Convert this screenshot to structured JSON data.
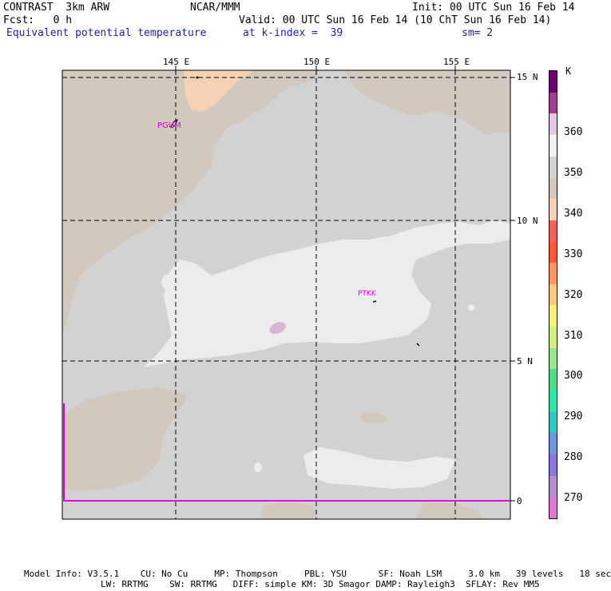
{
  "header": {
    "model": "CONTRAST  3km ARW",
    "org": "NCAR/MMM",
    "init": "Init: 00 UTC Sun 16 Feb 14",
    "fcst": "Fcst:   0 h",
    "valid": "Valid: 00 UTC Sun 16 Feb 14 (10 ChT Sun 16 Feb 14)",
    "field": "Equivalent potential temperature",
    "level": "at k-index =  39",
    "smooth": "sm= 2"
  },
  "map": {
    "lon_labels": [
      "145 E",
      "150 E",
      "155 E"
    ],
    "lat_labels": [
      "15 N",
      "10 N",
      "5 N",
      "0"
    ],
    "stations": [
      "PGUM",
      "PTKK"
    ]
  },
  "legend": {
    "unit": "K",
    "labels": [
      "360",
      "350",
      "340",
      "330",
      "320",
      "310",
      "300",
      "290",
      "280",
      "270"
    ],
    "colors": [
      "#6e006e",
      "#a0408c",
      "#e6c8e6",
      "#f2f2f2",
      "#d2d2d2",
      "#d2c8be",
      "#f5d2b4",
      "#f0645a",
      "#ff5a3c",
      "#ff9664",
      "#ffc882",
      "#f5f07d",
      "#d2f082",
      "#96e68c",
      "#50dc8c",
      "#32e6aa",
      "#32c8c8",
      "#6e96dc",
      "#8c78dc",
      "#b48cd2",
      "#dc78d2"
    ]
  },
  "footer": {
    "line1": "Model Info: V3.5.1    CU: No Cu     MP: Thompson     PBL: YSU      SF: Noah LSM     3.0 km   39 levels   18 sec",
    "line2": "LW: RRTMG    SW: RRTMG   DIFF: simple KM: 3D Smagor DAMP: Rayleigh3  SFLAY: Rev MM5"
  }
}
